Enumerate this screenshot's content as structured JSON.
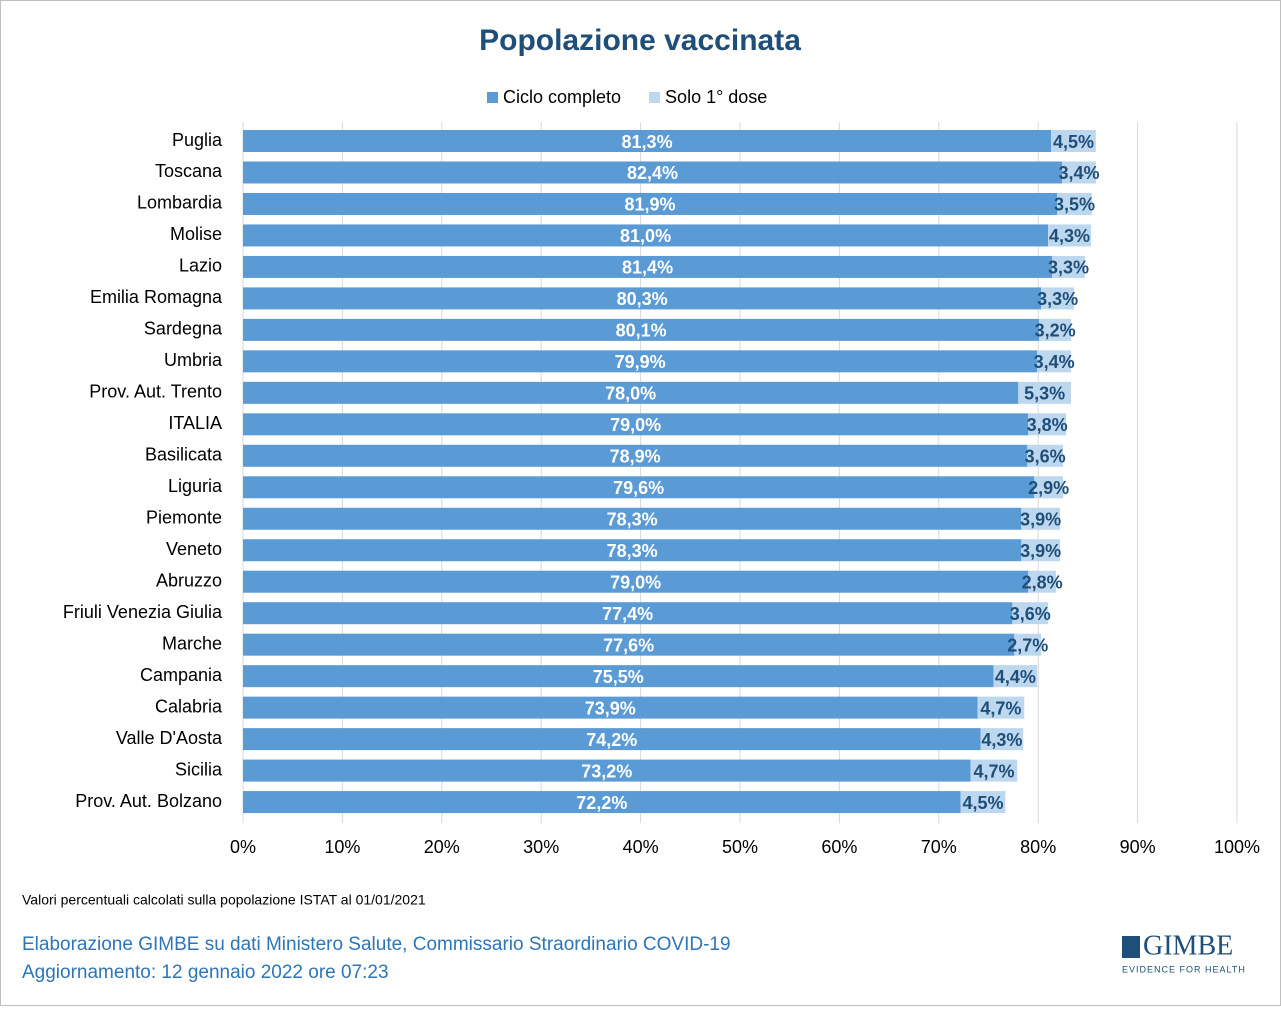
{
  "chart_data": {
    "type": "stacked-bar-horizontal",
    "title": "Popolazione vaccinata",
    "categories": [
      "Puglia",
      "Toscana",
      "Lombardia",
      "Molise",
      "Lazio",
      "Emilia Romagna",
      "Sardegna",
      "Umbria",
      "Prov. Aut. Trento",
      "ITALIA",
      "Basilicata",
      "Liguria",
      "Piemonte",
      "Veneto",
      "Abruzzo",
      "Friuli Venezia Giulia",
      "Marche",
      "Campania",
      "Calabria",
      "Valle D'Aosta",
      "Sicilia",
      "Prov. Aut. Bolzano"
    ],
    "series": [
      {
        "name": "Ciclo completo",
        "color": "#5b9bd5",
        "label_color": "#ffffff",
        "values": [
          81.3,
          82.4,
          81.9,
          81.0,
          81.4,
          80.3,
          80.1,
          79.9,
          78.0,
          79.0,
          78.9,
          79.6,
          78.3,
          78.3,
          79.0,
          77.4,
          77.6,
          75.5,
          73.9,
          74.2,
          73.2,
          72.2
        ],
        "value_labels": [
          "81,3%",
          "82,4%",
          "81,9%",
          "81,0%",
          "81,4%",
          "80,3%",
          "80,1%",
          "79,9%",
          "78,0%",
          "79,0%",
          "78,9%",
          "79,6%",
          "78,3%",
          "78,3%",
          "79,0%",
          "77,4%",
          "77,6%",
          "75,5%",
          "73,9%",
          "74,2%",
          "73,2%",
          "72,2%"
        ]
      },
      {
        "name": "Solo 1° dose",
        "color": "#bdd7ee",
        "label_color": "#1f4e79",
        "values": [
          4.5,
          3.4,
          3.5,
          4.3,
          3.3,
          3.3,
          3.2,
          3.4,
          5.3,
          3.8,
          3.6,
          2.9,
          3.9,
          3.9,
          2.8,
          3.6,
          2.7,
          4.4,
          4.7,
          4.3,
          4.7,
          4.5
        ],
        "value_labels": [
          "4,5%",
          "3,4%",
          "3,5%",
          "4,3%",
          "3,3%",
          "3,3%",
          "3,2%",
          "3,4%",
          "5,3%",
          "3,8%",
          "3,6%",
          "2,9%",
          "3,9%",
          "3,9%",
          "2,8%",
          "3,6%",
          "2,7%",
          "4,4%",
          "4,7%",
          "4,3%",
          "4,7%",
          "4,5%"
        ]
      }
    ],
    "xlim": [
      0,
      100
    ],
    "xticks": [
      {
        "value": 0,
        "label": "0%"
      },
      {
        "value": 10,
        "label": "10%"
      },
      {
        "value": 20,
        "label": "20%"
      },
      {
        "value": 30,
        "label": "30%"
      },
      {
        "value": 40,
        "label": "40%"
      },
      {
        "value": 50,
        "label": "50%"
      },
      {
        "value": 60,
        "label": "60%"
      },
      {
        "value": 70,
        "label": "70%"
      },
      {
        "value": 80,
        "label": "80%"
      },
      {
        "value": 90,
        "label": "90%"
      },
      {
        "value": 100,
        "label": "100%"
      }
    ],
    "grid": true,
    "legend": "top"
  },
  "footer": {
    "note": "Valori percentuali calcolati sulla popolazione ISTAT al 01/01/2021",
    "source": "Elaborazione GIMBE su dati Ministero Salute, Commissario Straordinario COVID-19",
    "updated": "Aggiornamento: 12 gennaio 2022 ore 07:23",
    "logo": "GIMBE",
    "tagline": "EVIDENCE FOR HEALTH"
  }
}
